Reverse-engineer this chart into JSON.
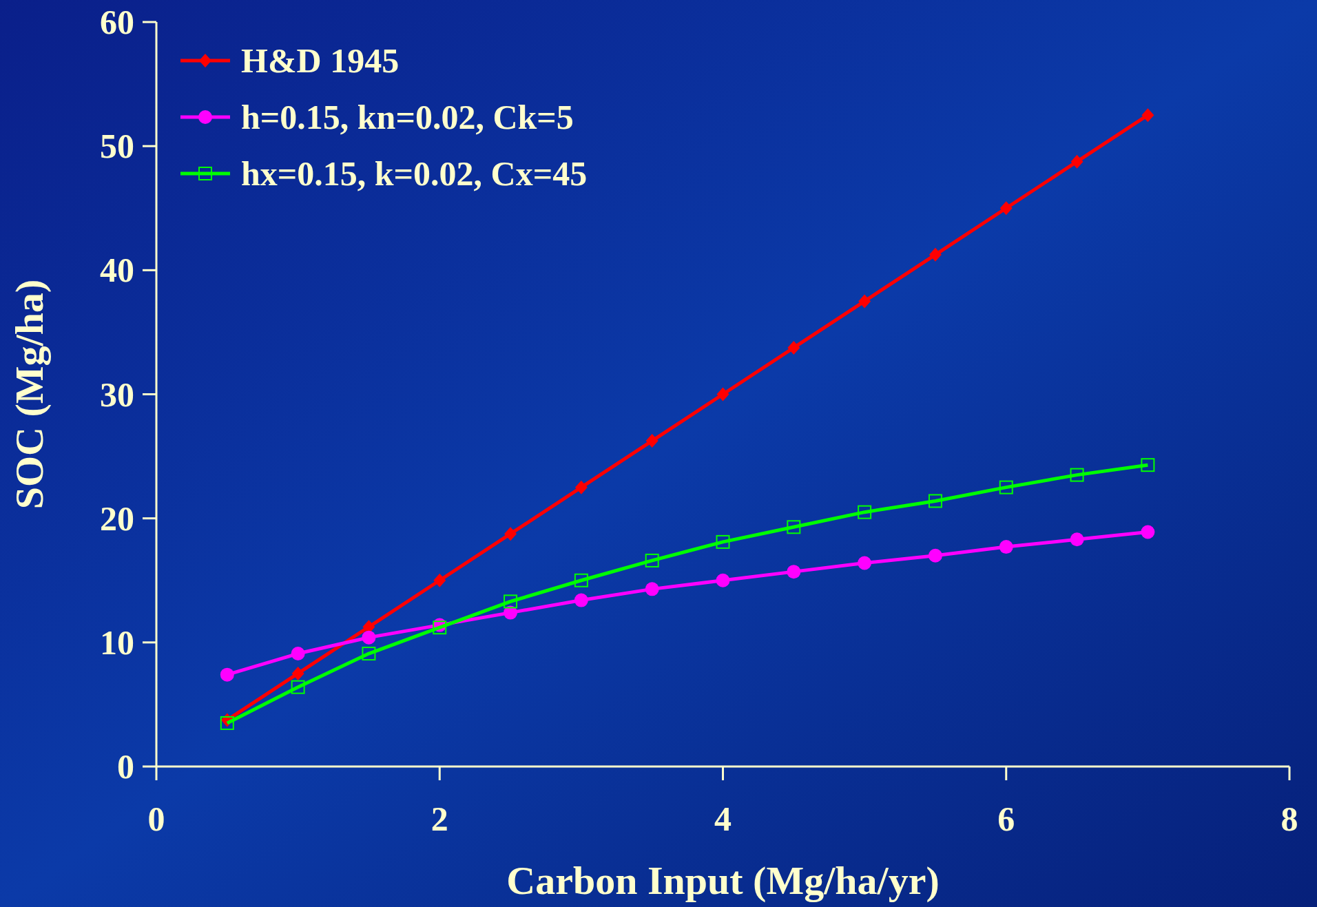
{
  "chart_data": {
    "type": "line",
    "xlabel": "Carbon Input (Mg/ha/yr)",
    "ylabel": "SOC (Mg/ha)",
    "x": [
      0.5,
      1,
      1.5,
      2,
      2.5,
      3,
      3.5,
      4,
      4.5,
      5,
      5.5,
      6,
      6.5,
      7
    ],
    "xlim": [
      0,
      8
    ],
    "xticks": [
      0,
      2,
      4,
      6,
      8
    ],
    "ylim": [
      0,
      60
    ],
    "yticks": [
      0,
      10,
      20,
      30,
      40,
      50,
      60
    ],
    "grid": false,
    "legend": "top left",
    "line_style": "solid",
    "series": [
      {
        "name": "H&D 1945",
        "color": "#ff0000",
        "marker": "diamond",
        "values": [
          3.75,
          7.5,
          11.25,
          15,
          18.75,
          22.5,
          26.25,
          30,
          33.75,
          37.5,
          41.25,
          45,
          48.75,
          52.5
        ]
      },
      {
        "name": "h=0.15, kn=0.02, Ck=5",
        "color": "#ff00ff",
        "marker": "circle",
        "values": [
          7.4,
          9.1,
          10.4,
          11.4,
          12.4,
          13.4,
          14.3,
          15.0,
          15.7,
          16.4,
          17.0,
          17.7,
          18.3,
          18.9
        ]
      },
      {
        "name": "hx=0.15, k=0.02, Cx=45",
        "color": "#00ff00",
        "marker": "square",
        "values": [
          3.5,
          6.4,
          9.1,
          11.2,
          13.3,
          15.0,
          16.6,
          18.1,
          19.3,
          20.5,
          21.4,
          22.5,
          23.5,
          24.3
        ]
      }
    ]
  }
}
